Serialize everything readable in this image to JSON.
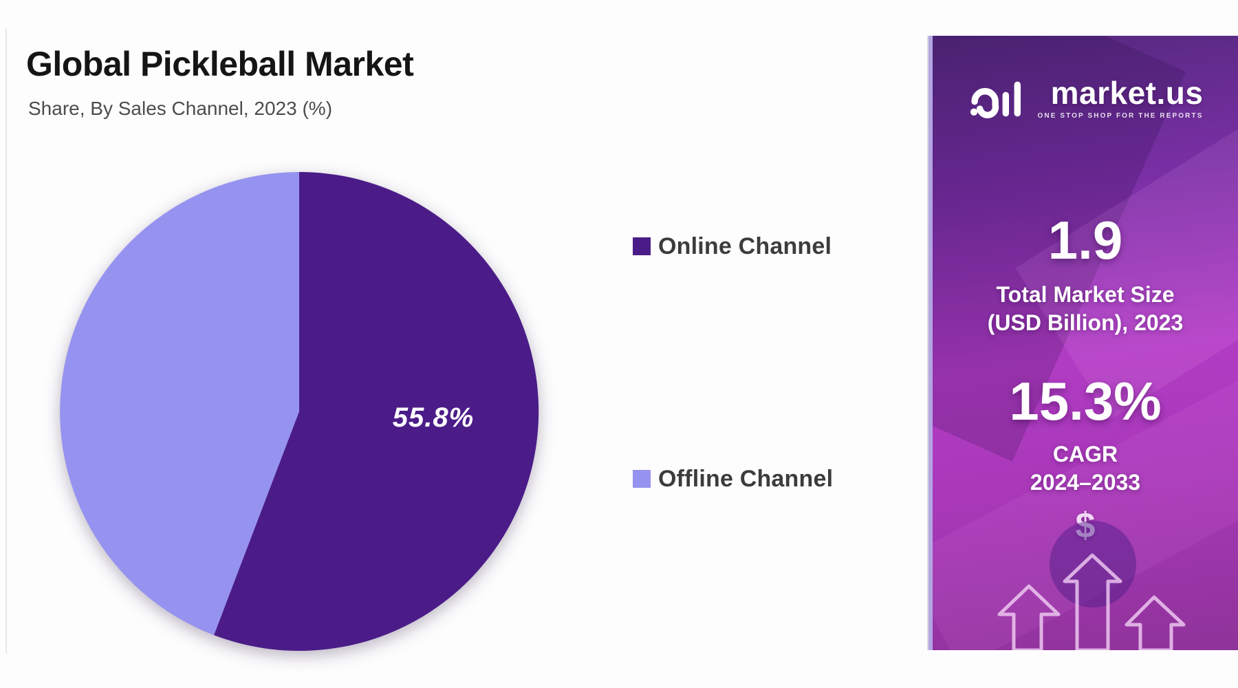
{
  "header": {
    "title": "Global Pickleball Market",
    "subtitle": "Share, By Sales Channel, 2023 (%)"
  },
  "chart_data": {
    "type": "pie",
    "title": "Global Pickleball Market",
    "subtitle": "Share, By Sales Channel, 2023 (%)",
    "unit": "%",
    "direction": "clockwise",
    "start_angle_deg": 0,
    "legend_position": "right",
    "slices": [
      {
        "label": "Online Channel",
        "value": 55.8,
        "data_label": "55.8%",
        "color": "#4B1C88"
      },
      {
        "label": "Offline Channel",
        "value": 44.2,
        "data_label": "",
        "color": "#9692F0"
      }
    ]
  },
  "sidebar": {
    "logo": {
      "brand": "market.us",
      "tagline": "ONE STOP SHOP FOR THE REPORTS"
    },
    "stats": [
      {
        "value": "1.9",
        "label": "Total Market Size (USD Billion), 2023",
        "label_lines": [
          "Total Market Size",
          "(USD Billion), 2023"
        ]
      },
      {
        "value": "15.3%",
        "label": "CAGR 2024-2033",
        "label_lines": [
          "CAGR",
          "2024–2033"
        ]
      }
    ],
    "currency_symbol": "$",
    "colors": {
      "gradient": [
        "#54297E",
        "#7A2FA5",
        "#B13CC4",
        "#A838B8",
        "#8E3399"
      ],
      "edge": "#B3A6E3",
      "arrow_outline": "#F2CFF5"
    }
  }
}
